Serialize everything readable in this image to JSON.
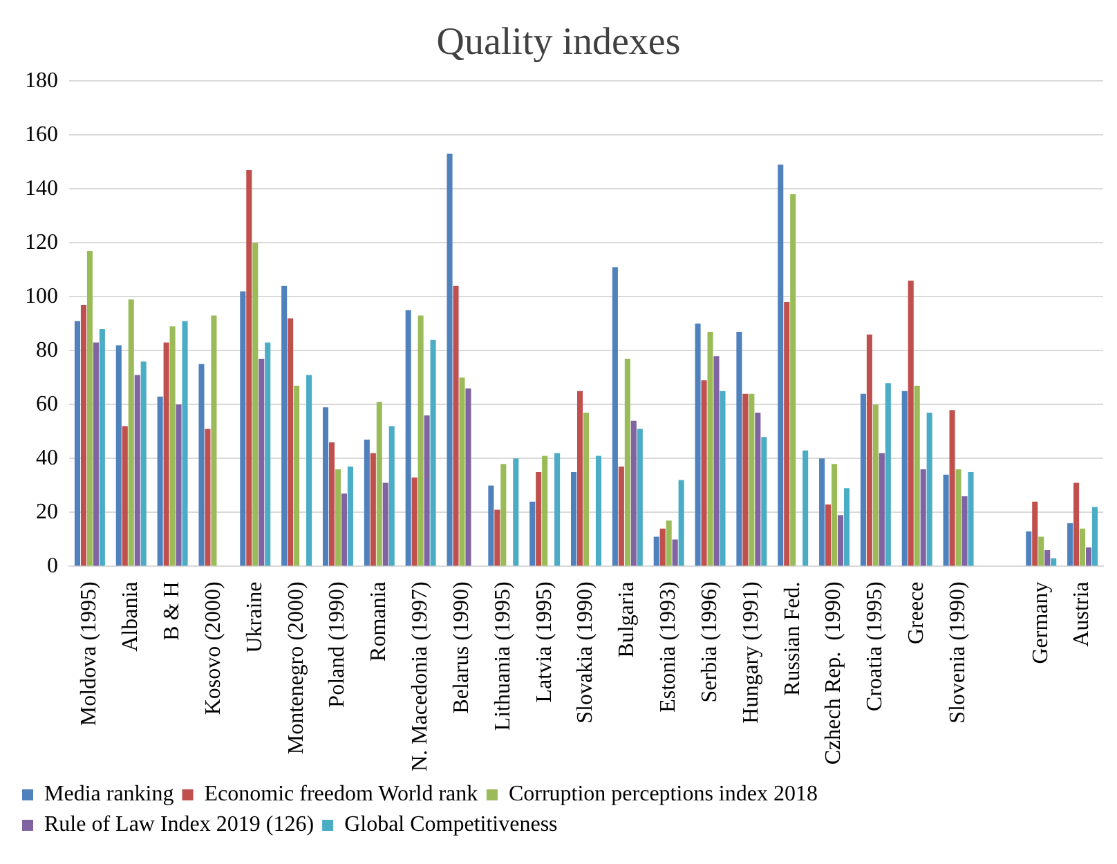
{
  "chart_data": {
    "type": "bar",
    "title": "Quality indexes",
    "categories": [
      "Moldova (1995)",
      "Albania",
      "B & H",
      "Kosovo (2000)",
      "Ukraine",
      "Montenegro (2000)",
      "Poland (1990)",
      "Romania",
      "N. Macedonia (1997)",
      "Belarus (1990)",
      "Lithuania (1995)",
      "Latvia (1995)",
      "Slovakia (1990)",
      "Bulgaria",
      "Estonia (1993)",
      "Serbia (1996)",
      "Hungary (1991)",
      "Russian Fed.",
      "Czhech Rep.  (1990)",
      "Croatia (1995)",
      "Greece",
      "Slovenia (1990)",
      null,
      "Germany",
      "Austria"
    ],
    "series": [
      {
        "name": "Media ranking",
        "color": "#4f81bd",
        "values": [
          91,
          82,
          63,
          75,
          102,
          104,
          59,
          47,
          95,
          153,
          30,
          24,
          35,
          111,
          11,
          90,
          87,
          149,
          40,
          64,
          65,
          34,
          null,
          13,
          16
        ]
      },
      {
        "name": "Economic freedom World rank",
        "color": "#c0504d",
        "values": [
          97,
          52,
          83,
          51,
          147,
          92,
          46,
          42,
          33,
          104,
          21,
          35,
          65,
          37,
          14,
          69,
          64,
          98,
          23,
          86,
          106,
          58,
          null,
          24,
          31
        ]
      },
      {
        "name": "Corruption perceptions index 2018",
        "color": "#9bbb59",
        "values": [
          117,
          99,
          89,
          93,
          120,
          67,
          36,
          61,
          93,
          70,
          38,
          41,
          57,
          77,
          17,
          87,
          64,
          138,
          38,
          60,
          67,
          36,
          null,
          11,
          14
        ]
      },
      {
        "name": "Rule of Law Index 2019 (126)",
        "color": "#8064a2",
        "values": [
          83,
          71,
          60,
          null,
          77,
          null,
          27,
          31,
          56,
          66,
          null,
          null,
          null,
          54,
          10,
          78,
          57,
          null,
          19,
          42,
          36,
          26,
          null,
          6,
          7
        ]
      },
      {
        "name": "Global Competitiveness",
        "color": "#4bacc6",
        "values": [
          88,
          76,
          91,
          null,
          83,
          71,
          37,
          52,
          84,
          null,
          40,
          42,
          41,
          51,
          32,
          65,
          48,
          43,
          29,
          68,
          57,
          35,
          null,
          3,
          22
        ]
      }
    ],
    "ylim": [
      0,
      180
    ],
    "yticks": [
      0,
      20,
      40,
      60,
      80,
      100,
      120,
      140,
      160,
      180
    ],
    "grid": "y",
    "legend": "bottom"
  }
}
